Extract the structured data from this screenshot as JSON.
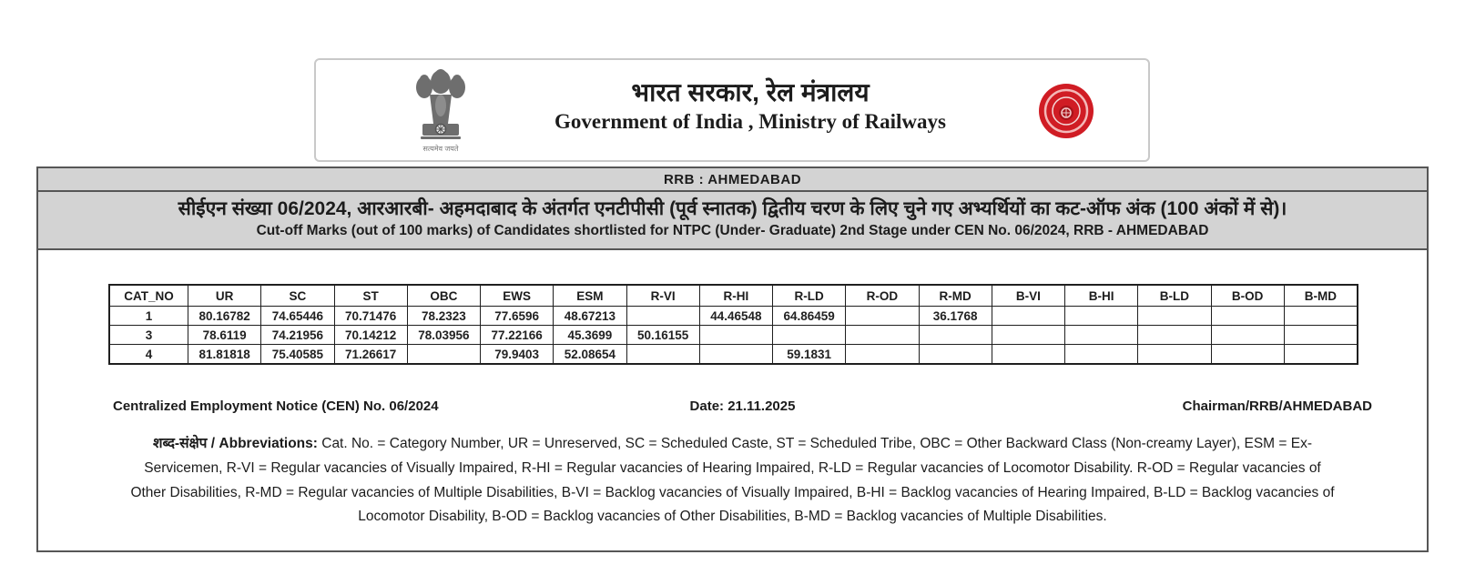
{
  "letterhead": {
    "hindi_title": "भारत सरकार, रेल मंत्रालय",
    "english_title": "Government of India , Ministry of Railways",
    "emblem_icon": "ashoka-lion-capital",
    "emblem_caption": "सत्यमेव जयते",
    "railway_logo_icon": "indian-railways-red-seal"
  },
  "banner": {
    "office": "RRB : AHMEDABAD"
  },
  "notice": {
    "hindi_line": "सीईएन संख्या 06/2024, आरआरबी- अहमदाबाद के अंतर्गत एनटीपीसी (पूर्व स्नातक) द्वितीय चरण के लिए चुने गए अभ्यर्थियों का कट-ऑफ अंक (100 अंकों में से)।",
    "english_line": "Cut-off Marks (out of 100 marks) of Candidates shortlisted for NTPC (Under- Graduate) 2nd Stage under CEN No. 06/2024, RRB - AHMEDABAD"
  },
  "cutoff_table": {
    "columns": [
      "CAT_NO",
      "UR",
      "SC",
      "ST",
      "OBC",
      "EWS",
      "ESM",
      "R-VI",
      "R-HI",
      "R-LD",
      "R-OD",
      "R-MD",
      "B-VI",
      "B-HI",
      "B-LD",
      "B-OD",
      "B-MD"
    ],
    "rows": [
      [
        "1",
        "80.16782",
        "74.65446",
        "70.71476",
        "78.2323",
        "77.6596",
        "48.67213",
        "",
        "44.46548",
        "64.86459",
        "",
        "36.1768",
        "",
        "",
        "",
        "",
        ""
      ],
      [
        "3",
        "78.6119",
        "74.21956",
        "70.14212",
        "78.03956",
        "77.22166",
        "45.3699",
        "50.16155",
        "",
        "",
        "",
        "",
        "",
        "",
        "",
        "",
        ""
      ],
      [
        "4",
        "81.81818",
        "75.40585",
        "71.26617",
        "",
        "79.9403",
        "52.08654",
        "",
        "",
        "59.1831",
        "",
        "",
        "",
        "",
        "",
        "",
        ""
      ]
    ]
  },
  "footer": {
    "cen_label": "Centralized Employment Notice (CEN) No. 06/2024",
    "date_label": "Date: 21.11.2025",
    "signature": "Chairman/RRB/AHMEDABAD"
  },
  "abbreviations": {
    "lead": "शब्द-संक्षेप / Abbreviations:",
    "text": " Cat. No. = Category Number, UR = Unreserved, SC = Scheduled Caste, ST = Scheduled Tribe, OBC = Other Backward Class (Non-creamy Layer), ESM = Ex-Servicemen, R-VI = Regular vacancies of Visually Impaired, R-HI = Regular vacancies of Hearing Impaired, R-LD = Regular vacancies of Locomotor Disability. R-OD = Regular vacancies of Other Disabilities, R-MD = Regular vacancies of Multiple Disabilities, B-VI = Backlog vacancies of Visually Impaired, B-HI = Backlog vacancies of Hearing Impaired, B-LD = Backlog vacancies of Locomotor Disability, B-OD = Backlog vacancies of Other Disabilities, B-MD = Backlog vacancies of Multiple Disabilities."
  },
  "colors": {
    "band_gray": "#d3d3d3",
    "border_dark": "#565656",
    "table_border": "#1f1f1f",
    "logo_red": "#d01c24",
    "emblem_gray": "#6e6e6e"
  }
}
